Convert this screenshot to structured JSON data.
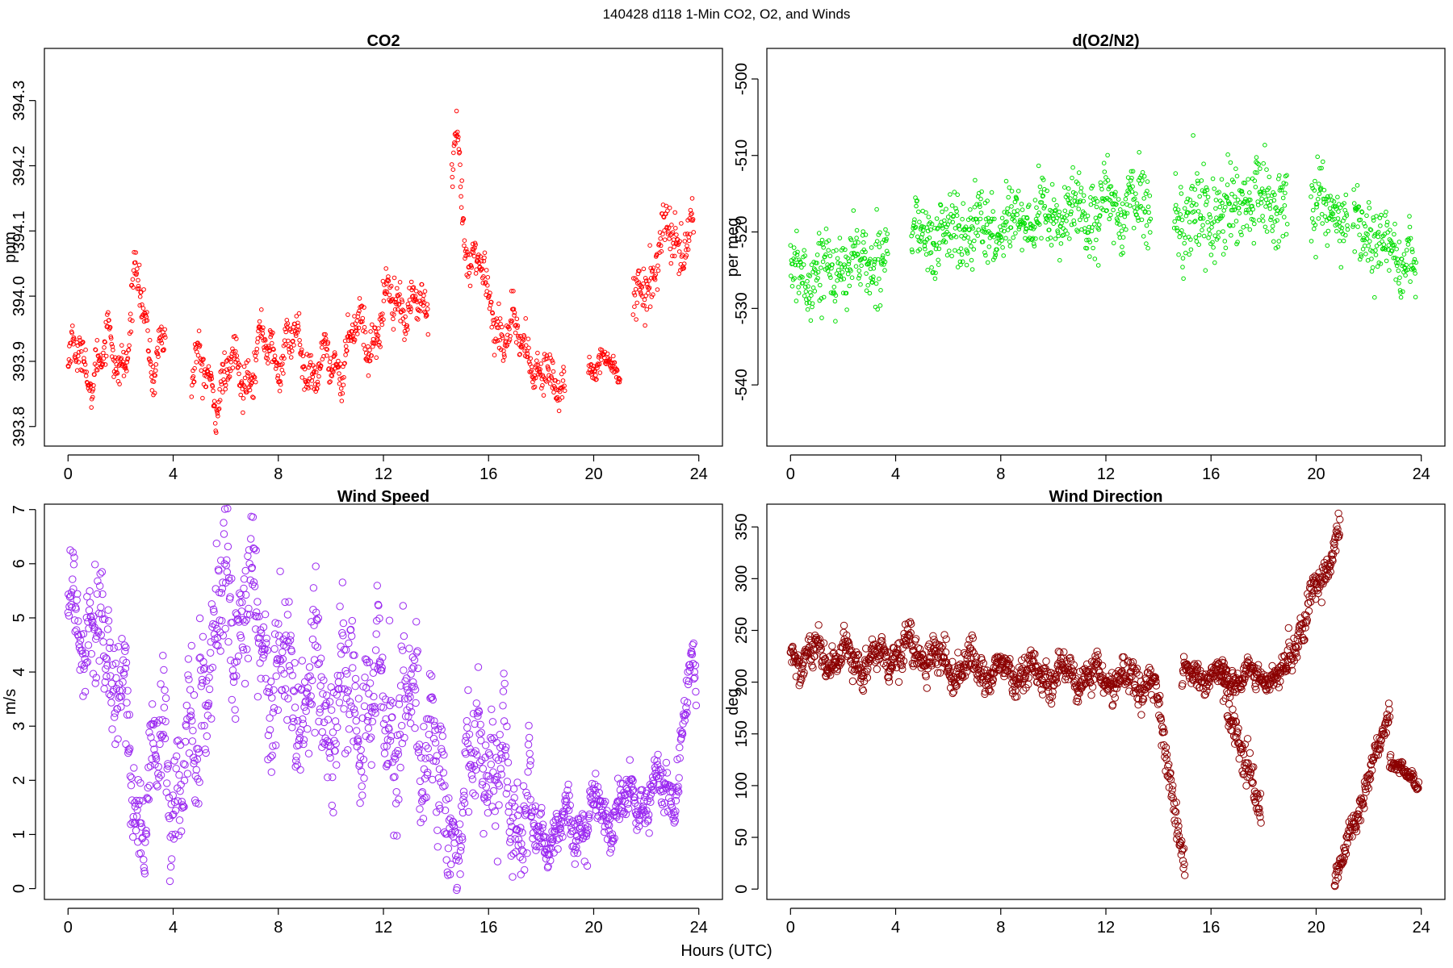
{
  "figure": {
    "title": "140428   d118   1-Min CO2, O2, and Winds",
    "xlabel": "Hours (UTC)"
  },
  "chart_data": [
    {
      "type": "scatter",
      "title": "CO2",
      "xlabel": "",
      "ylabel": "ppm",
      "color": "#ff0000",
      "marker": "small-circle",
      "xlim": [
        -0.9,
        24.9
      ],
      "ylim": [
        393.77,
        394.38
      ],
      "xticks": [
        0,
        4,
        8,
        12,
        16,
        20,
        24
      ],
      "yticks": [
        393.8,
        393.9,
        394.0,
        394.1,
        394.2,
        394.3
      ],
      "ytick_labels": [
        "393.8",
        "393.9",
        "394.0",
        "394.1",
        "394.2",
        "394.3"
      ],
      "series": [
        {
          "segments": [
            {
              "x0": 0.0,
              "x1": 3.7,
              "y0": 393.89,
              "y1": 393.93,
              "amp": 0.035,
              "noise": 0.025,
              "bumps": [
                [
                  2.6,
                  0.09,
                  0.3
                ]
              ]
            },
            {
              "x0": 4.7,
              "x1": 13.7,
              "y0": 393.9,
              "y1": 393.96,
              "amp": 0.03,
              "noise": 0.025,
              "bumps": [
                [
                  5.8,
                  -0.04,
                  1.2
                ],
                [
                  9.7,
                  -0.05,
                  0.8
                ],
                [
                  12.6,
                  0.05,
                  0.6
                ]
              ]
            },
            {
              "x0": 14.6,
              "x1": 18.9,
              "y0": 394.1,
              "y1": 393.86,
              "amp": 0.02,
              "noise": 0.03,
              "bumps": [
                [
                  14.8,
                  0.16,
                  0.2
                ],
                [
                  16.6,
                  -0.05,
                  0.6
                ],
                [
                  17.9,
                  -0.05,
                  0.3
                ]
              ]
            },
            {
              "x0": 19.8,
              "x1": 21.0,
              "y0": 393.9,
              "y1": 393.89,
              "amp": 0.01,
              "noise": 0.015,
              "bumps": []
            },
            {
              "x0": 21.5,
              "x1": 23.8,
              "y0": 393.98,
              "y1": 394.11,
              "amp": 0.02,
              "noise": 0.035,
              "bumps": [
                [
                  22.6,
                  0.05,
                  0.4
                ]
              ]
            }
          ]
        }
      ]
    },
    {
      "type": "scatter",
      "title": "d(O2/N2)",
      "xlabel": "",
      "ylabel": "per meg",
      "color": "#00dd00",
      "marker": "small-circle",
      "xlim": [
        -0.9,
        24.9
      ],
      "ylim": [
        -548,
        -496
      ],
      "xticks": [
        0,
        4,
        8,
        12,
        16,
        20,
        24
      ],
      "yticks": [
        -540,
        -530,
        -520,
        -510,
        -500
      ],
      "ytick_labels": [
        "-540",
        "-530",
        "-520",
        "-510",
        "-500"
      ],
      "series": [
        {
          "segments": [
            {
              "x0": 0.0,
              "x1": 3.7,
              "y0": -526,
              "y1": -523,
              "amp": 1.5,
              "noise": 4,
              "bumps": []
            },
            {
              "x0": 4.6,
              "x1": 13.7,
              "y0": -521,
              "y1": -516,
              "amp": 1.5,
              "noise": 4,
              "bumps": []
            },
            {
              "x0": 14.6,
              "x1": 18.9,
              "y0": -518,
              "y1": -516,
              "amp": 1.5,
              "noise": 5,
              "bumps": []
            },
            {
              "x0": 19.8,
              "x1": 21.2,
              "y0": -516,
              "y1": -519,
              "amp": 1,
              "noise": 4,
              "bumps": []
            },
            {
              "x0": 21.4,
              "x1": 23.8,
              "y0": -519,
              "y1": -525,
              "amp": 1,
              "noise": 4,
              "bumps": []
            }
          ]
        }
      ]
    },
    {
      "type": "scatter",
      "title": "Wind Speed",
      "xlabel": "",
      "ylabel": "m/s",
      "color": "#9a28f0",
      "marker": "circle",
      "xlim": [
        -0.9,
        24.9
      ],
      "ylim": [
        -0.2,
        7.1
      ],
      "xticks": [
        0,
        4,
        8,
        12,
        16,
        20,
        24
      ],
      "yticks": [
        0,
        1,
        2,
        3,
        4,
        5,
        6,
        7
      ],
      "ytick_labels": [
        "0",
        "1",
        "2",
        "3",
        "4",
        "5",
        "6",
        "7"
      ],
      "series": [
        {
          "segments": [
            {
              "x0": 0.0,
              "x1": 2.2,
              "y0": 5.5,
              "y1": 3.8,
              "amp": 0.5,
              "noise": 1.0,
              "bumps": []
            },
            {
              "x0": 2.2,
              "x1": 5.0,
              "y0": 2.2,
              "y1": 2.2,
              "amp": 0.8,
              "noise": 0.9,
              "bumps": [
                [
                  2.6,
                  -1.2,
                  0.25
                ]
              ]
            },
            {
              "x0": 5.0,
              "x1": 14.0,
              "y0": 4.2,
              "y1": 3.0,
              "amp": 0.8,
              "noise": 1.1,
              "bumps": [
                [
                  6.5,
                  1.2,
                  1.0
                ]
              ]
            },
            {
              "x0": 14.0,
              "x1": 17.6,
              "y0": 1.2,
              "y1": 1.6,
              "amp": 0.8,
              "noise": 0.9,
              "bumps": [
                [
                  15.8,
                  1.4,
                  0.5
                ]
              ]
            },
            {
              "x0": 17.6,
              "x1": 23.9,
              "y0": 0.9,
              "y1": 2.0,
              "amp": 0.3,
              "noise": 0.35,
              "bumps": [
                [
                  23.7,
                  2.0,
                  0.35
                ]
              ]
            }
          ]
        }
      ]
    },
    {
      "type": "scatter",
      "title": "Wind Direction",
      "xlabel": "",
      "ylabel": "deg",
      "color": "#8b0000",
      "marker": "circle",
      "xlim": [
        -0.9,
        24.9
      ],
      "ylim": [
        -10,
        372
      ],
      "xticks": [
        0,
        4,
        8,
        12,
        16,
        20,
        24
      ],
      "yticks": [
        0,
        50,
        100,
        150,
        200,
        250,
        300,
        350
      ],
      "ytick_labels": [
        "0",
        "50",
        "100",
        "150",
        "200",
        "250",
        "300",
        "350"
      ],
      "series": [
        {
          "segments": [
            {
              "x0": 0.0,
              "x1": 13.9,
              "y0": 225,
              "y1": 200,
              "amp": 10,
              "noise": 14,
              "bumps": [
                [
                  4.5,
                  15,
                  1.0
                ]
              ]
            },
            {
              "x0": 13.9,
              "x1": 15.0,
              "y0": 190,
              "y1": 20,
              "amp": 5,
              "noise": 15,
              "bumps": []
            },
            {
              "x0": 14.9,
              "x1": 18.9,
              "y0": 205,
              "y1": 205,
              "amp": 6,
              "noise": 10,
              "bumps": []
            },
            {
              "x0": 16.4,
              "x1": 17.9,
              "y0": 200,
              "y1": 70,
              "amp": 4,
              "noise": 20,
              "bumps": []
            },
            {
              "x0": 18.9,
              "x1": 20.9,
              "y0": 220,
              "y1": 345,
              "amp": 8,
              "noise": 15,
              "bumps": []
            },
            {
              "x0": 20.7,
              "x1": 22.8,
              "y0": 5,
              "y1": 170,
              "amp": 4,
              "noise": 10,
              "bumps": []
            },
            {
              "x0": 22.8,
              "x1": 23.9,
              "y0": 125,
              "y1": 100,
              "amp": 3,
              "noise": 6,
              "bumps": []
            }
          ]
        }
      ]
    }
  ]
}
